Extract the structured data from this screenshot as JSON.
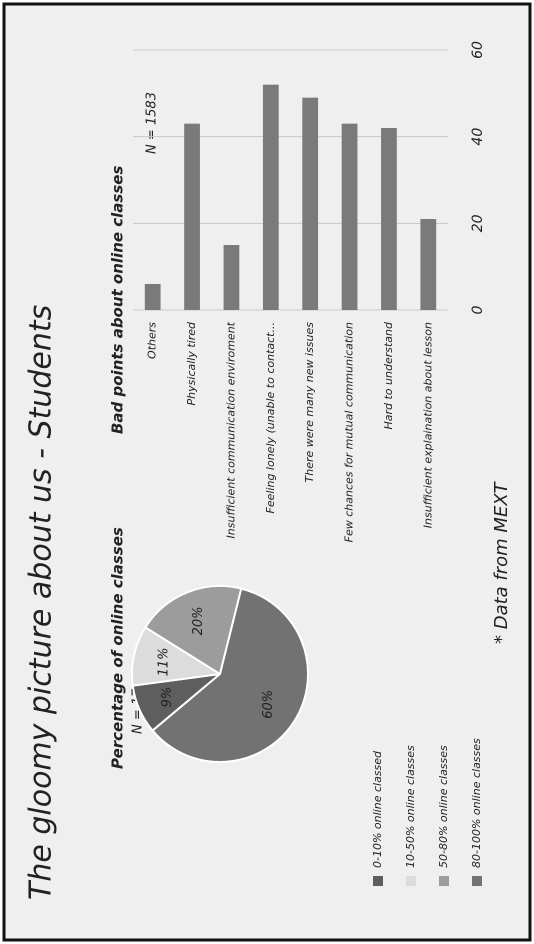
{
  "title": "The gloomy picture about us - Students",
  "note": "* Data from MEXT",
  "chart_data": [
    {
      "type": "pie",
      "title": "Percentage of online classes",
      "subtitle": "N = 1744",
      "categories": [
        "0-10% online classed",
        "10-50% online classes",
        "50-80% online classes",
        "80-100% online classes"
      ],
      "values": [
        9,
        11,
        20,
        60
      ],
      "value_labels": [
        "9%",
        "11%",
        "20%",
        "60%"
      ],
      "colors": [
        "#5e5e5e",
        "#dcdcdc",
        "#9c9c9c",
        "#727272"
      ]
    },
    {
      "type": "bar",
      "title": "Bad points about online classes",
      "annotation": "N = 1583",
      "categories": [
        "Others",
        "Physically tired",
        "Insufficient communication enviroment",
        "Feeling lonely (unable to contact...",
        "There were many new issues",
        "Few chances for mutual communication",
        "Hard to understand",
        "Insufficient explaination about lesson"
      ],
      "values": [
        6,
        43,
        15,
        52,
        49,
        43,
        42,
        21
      ],
      "color": "#7a7a7a",
      "xlim": [
        0,
        60
      ],
      "xticks": [
        0,
        20,
        40,
        60
      ],
      "grid": true
    }
  ]
}
